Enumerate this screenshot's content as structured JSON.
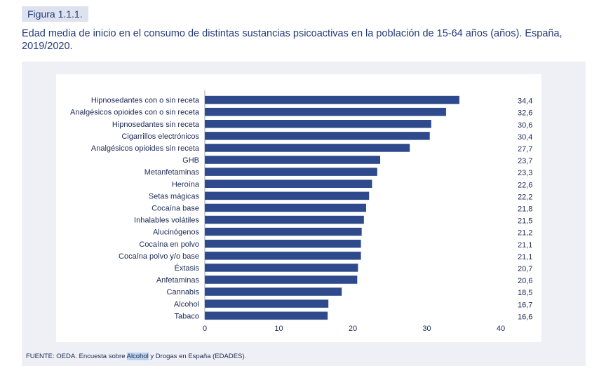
{
  "figure": {
    "label": "Figura 1.1.1.",
    "title": "Edad media de inicio en el consumo de distintas sustancias psicoactivas en la población de 15-64 años (años). España, 2019/2020."
  },
  "chart_data": {
    "type": "bar",
    "orientation": "horizontal",
    "categories": [
      "Hipnosedantes con o sin receta",
      "Analgésicos opioides con o sin receta",
      "Hipnosedantes sin receta",
      "Cigarrillos electrónicos",
      "Analgésicos opioides sin receta",
      "GHB",
      "Metanfetaminas",
      "Heroína",
      "Setas mágicas",
      "Cocaína base",
      "Inhalables volátiles",
      "Alucinógenos",
      "Cocaína en polvo",
      "Cocaína polvo y/o base",
      "Éxtasis",
      "Anfetaminas",
      "Cannabis",
      "Alcohol",
      "Tabaco"
    ],
    "values": [
      34.4,
      32.6,
      30.6,
      30.4,
      27.7,
      23.7,
      23.3,
      22.6,
      22.2,
      21.8,
      21.5,
      21.2,
      21.1,
      21.1,
      20.7,
      20.6,
      18.5,
      16.7,
      16.6
    ],
    "value_labels": [
      "34,4",
      "32,6",
      "30,6",
      "30,4",
      "27,7",
      "23,7",
      "23,3",
      "22,6",
      "22,2",
      "21,8",
      "21,5",
      "21,2",
      "21,1",
      "21,1",
      "20,7",
      "20,6",
      "18,5",
      "16,7",
      "16,6"
    ],
    "xlim": [
      0,
      40
    ],
    "xticks": [
      0,
      10,
      20,
      30,
      40
    ],
    "xtick_labels": [
      "0",
      "10",
      "20",
      "30",
      "40"
    ],
    "bar_color": "#2e4a8c",
    "grid": false
  },
  "source": {
    "prefix": "FUENTE: OEDA. Encuesta sobre ",
    "highlight": "Alcohol",
    "suffix": " y Drogas en España (EDADES)."
  }
}
